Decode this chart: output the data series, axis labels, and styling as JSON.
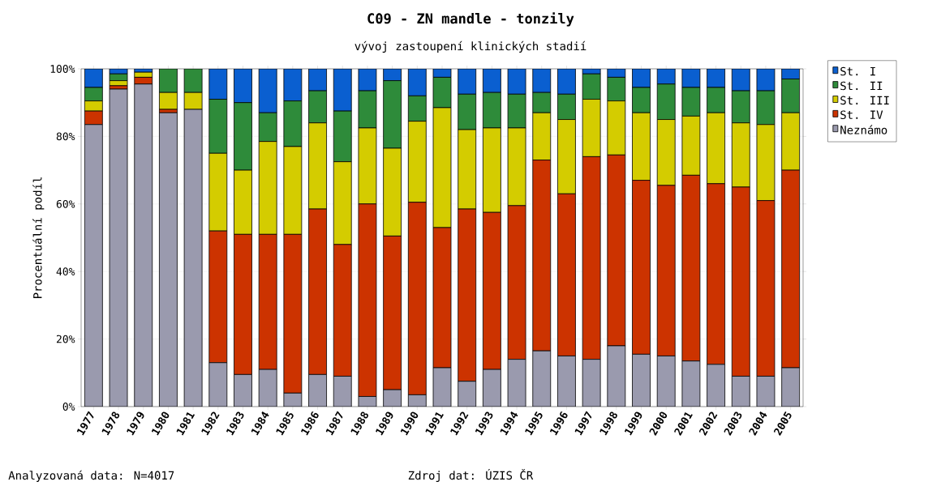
{
  "chart_data": {
    "type": "bar",
    "stacked": true,
    "title": "C09 - ZN mandle - tonzily",
    "subtitle": "vývoj zastoupení klinických stadií",
    "ylabel": "Procentuální podíl",
    "categories": [
      "1977",
      "1978",
      "1979",
      "1980",
      "1981",
      "1982",
      "1983",
      "1984",
      "1985",
      "1986",
      "1987",
      "1988",
      "1989",
      "1990",
      "1991",
      "1992",
      "1993",
      "1994",
      "1995",
      "1996",
      "1997",
      "1998",
      "1999",
      "2000",
      "2001",
      "2002",
      "2003",
      "2004",
      "2005"
    ],
    "series": [
      {
        "name": "Neznámo",
        "color": "#9a9aae",
        "values": [
          83.5,
          94,
          95.5,
          87,
          88,
          13,
          9.5,
          11,
          4,
          9.5,
          9,
          3,
          5,
          3.5,
          11.5,
          7.5,
          11,
          14,
          16.5,
          15,
          14,
          18,
          15.5,
          15,
          13.5,
          12.5,
          9,
          9,
          11.5
        ]
      },
      {
        "name": "St. IV",
        "color": "#cc3300",
        "values": [
          4,
          1,
          2,
          1,
          0,
          39,
          41.5,
          40,
          47,
          49,
          39,
          57,
          45.5,
          57,
          41.5,
          51,
          46.5,
          45.5,
          56.5,
          48,
          60,
          56.5,
          51.5,
          50.5,
          55,
          53.5,
          56,
          52,
          58.5
        ]
      },
      {
        "name": "St. III",
        "color": "#d4cc00",
        "values": [
          3,
          1.5,
          1.5,
          5,
          5,
          23,
          19,
          27.5,
          26,
          25.5,
          24.5,
          22.5,
          26,
          24,
          35.5,
          23.5,
          25,
          23,
          14,
          22,
          17,
          16,
          20,
          19.5,
          17.5,
          21,
          19,
          22.5,
          17
        ]
      },
      {
        "name": "St. II",
        "color": "#2e8b3a",
        "values": [
          4,
          2,
          0,
          7,
          7,
          16,
          20,
          8.5,
          13.5,
          9.5,
          15,
          11,
          20,
          7.5,
          9,
          10.5,
          10.5,
          10,
          6,
          7.5,
          7.5,
          7,
          7.5,
          10.5,
          8.5,
          7.5,
          9.5,
          10,
          10
        ]
      },
      {
        "name": "St. I",
        "color": "#0a5fd0",
        "values": [
          5.5,
          1.5,
          1,
          0,
          0,
          9,
          10,
          13,
          9.5,
          6.5,
          12.5,
          6.5,
          3.5,
          8,
          2.5,
          7.5,
          7,
          7.5,
          7,
          7.5,
          1.5,
          2.5,
          5.5,
          4.5,
          5.5,
          5.5,
          6.5,
          6.5,
          3
        ]
      }
    ],
    "ylim": [
      0,
      100
    ],
    "yticks": [
      {
        "value": 0,
        "label": "0%"
      },
      {
        "value": 20,
        "label": "20%"
      },
      {
        "value": 40,
        "label": "40%"
      },
      {
        "value": 60,
        "label": "60%"
      },
      {
        "value": 80,
        "label": "80%"
      },
      {
        "value": 100,
        "label": "100%"
      }
    ],
    "grid": "y",
    "legend": "right",
    "annotations": [
      "Analyzovaná data: N=4017",
      "Zdroj dat: ÚZIS ČR"
    ]
  }
}
